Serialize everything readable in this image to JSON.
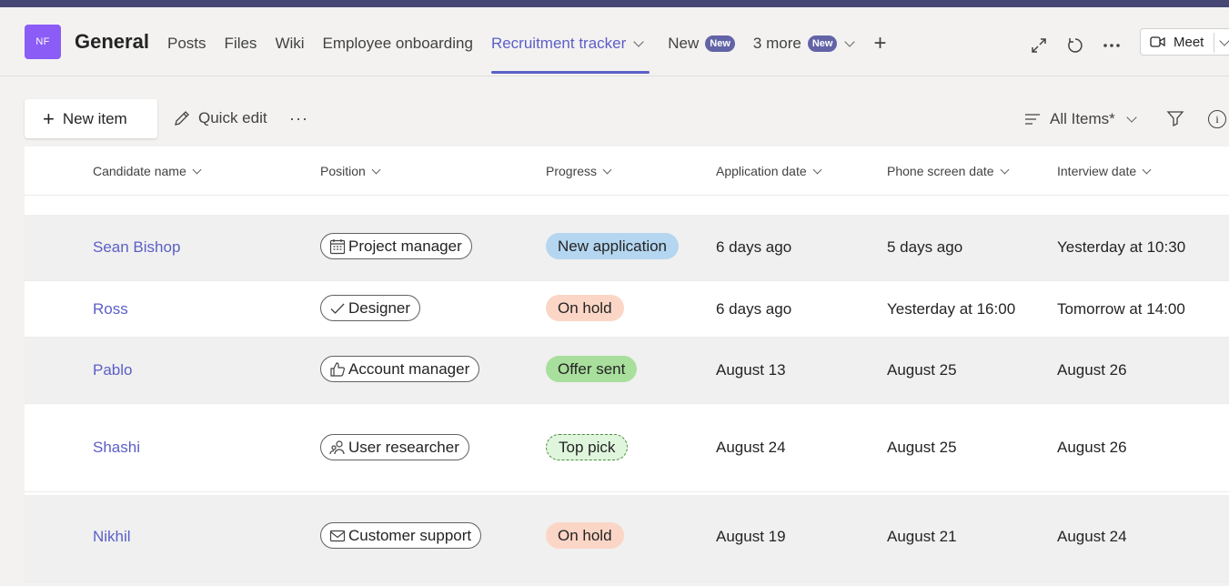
{
  "header": {
    "avatar_initials": "NF",
    "title": "General",
    "tabs": [
      {
        "label": "Posts"
      },
      {
        "label": "Files"
      },
      {
        "label": "Wiki"
      },
      {
        "label": "Employee onboarding"
      },
      {
        "label": "Recruitment tracker"
      },
      {
        "label": "New",
        "badge": "New"
      },
      {
        "label": "3 more",
        "badge": "New"
      }
    ],
    "meet_label": "Meet"
  },
  "toolbar": {
    "new_item": "New item",
    "quick_edit": "Quick edit",
    "more": "···",
    "view": "All Items*"
  },
  "columns": [
    "Candidate name",
    "Position",
    "Progress",
    "Application date",
    "Phone screen date",
    "Interview date"
  ],
  "rows": [
    {
      "name": "Sean Bishop",
      "position": "Project manager",
      "position_icon": "calendar-icon",
      "progress": "New application",
      "progress_color": "#b4d6f0",
      "application": "6 days ago",
      "phone": "5 days ago",
      "interview": "Yesterday at 10:30"
    },
    {
      "name": "Ross",
      "position": "Designer",
      "position_icon": "check-icon",
      "progress": "On hold",
      "progress_color": "#fbd6c6",
      "application": "6 days ago",
      "phone": "Yesterday at 16:00",
      "interview": "Tomorrow at 14:00"
    },
    {
      "name": "Pablo",
      "position": "Account manager",
      "position_icon": "thumbs-up-icon",
      "progress": "Offer sent",
      "progress_color": "#a8df9c",
      "application": "August 13",
      "phone": "August 25",
      "interview": "August 26"
    },
    {
      "name": "Shashi",
      "position": "User researcher",
      "position_icon": "people-icon",
      "progress": "Top pick",
      "progress_color": "#dff6dd",
      "application": "August 24",
      "phone": "August 25",
      "interview": "August 26"
    },
    {
      "name": "Nikhil",
      "position": "Customer support",
      "position_icon": "mail-icon",
      "progress": "On hold",
      "progress_color": "#fbd6c6",
      "application": "August 19",
      "phone": "August 21",
      "interview": "August 24"
    }
  ],
  "colors": {
    "accent": "#5b5fc7",
    "topbar": "#464775",
    "avatar": "#8b5cf6"
  }
}
